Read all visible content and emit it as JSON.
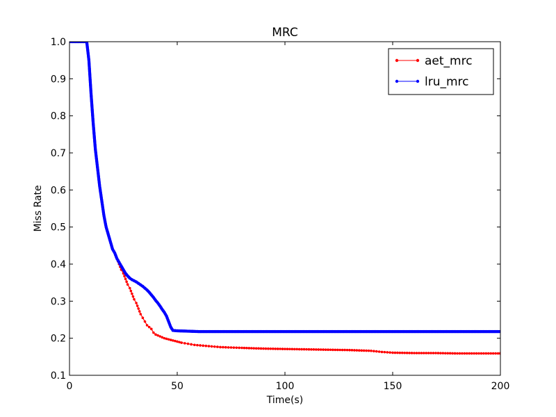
{
  "chart_data": {
    "type": "line",
    "title": "MRC",
    "xlabel": "Time(s)",
    "ylabel": "Miss Rate",
    "xlim": [
      0,
      200
    ],
    "ylim": [
      0.1,
      1.0
    ],
    "xticks": [
      0,
      50,
      100,
      150,
      200
    ],
    "yticks": [
      0.1,
      0.2,
      0.3,
      0.4,
      0.5,
      0.6,
      0.7,
      0.8,
      0.9,
      1.0
    ],
    "xtick_labels": [
      "0",
      "50",
      "100",
      "150",
      "200"
    ],
    "ytick_labels": [
      "0.1",
      "0.2",
      "0.3",
      "0.4",
      "0.5",
      "0.6",
      "0.7",
      "0.8",
      "0.9",
      "1.0"
    ],
    "grid": false,
    "legend_position": "top-right",
    "series": [
      {
        "name": "aet_mrc",
        "color": "#ff0000",
        "x": [
          8,
          9,
          10,
          11,
          12,
          13,
          14,
          15,
          16,
          17,
          18,
          19,
          20,
          21,
          22,
          23,
          24,
          25,
          26,
          27,
          28,
          29,
          30,
          31,
          32,
          33,
          34,
          35,
          36,
          37,
          38,
          39,
          40,
          42,
          44,
          46,
          48,
          50,
          52,
          55,
          58,
          62,
          66,
          70,
          75,
          80,
          90,
          100,
          110,
          120,
          130,
          140,
          145,
          150,
          160,
          170,
          180,
          190,
          200
        ],
        "y": [
          1.0,
          0.95,
          0.86,
          0.78,
          0.71,
          0.66,
          0.61,
          0.57,
          0.53,
          0.5,
          0.48,
          0.46,
          0.44,
          0.43,
          0.415,
          0.4,
          0.385,
          0.375,
          0.36,
          0.345,
          0.335,
          0.32,
          0.305,
          0.295,
          0.28,
          0.265,
          0.255,
          0.245,
          0.235,
          0.23,
          0.225,
          0.215,
          0.21,
          0.205,
          0.2,
          0.197,
          0.194,
          0.191,
          0.188,
          0.185,
          0.182,
          0.18,
          0.178,
          0.176,
          0.175,
          0.174,
          0.172,
          0.171,
          0.17,
          0.169,
          0.168,
          0.166,
          0.163,
          0.161,
          0.16,
          0.16,
          0.159,
          0.159,
          0.159
        ]
      },
      {
        "name": "lru_mrc",
        "color": "#0000ff",
        "x": [
          0,
          5,
          8,
          9,
          10,
          11,
          12,
          13,
          14,
          15,
          16,
          17,
          18,
          19,
          20,
          21,
          22,
          23,
          24,
          25,
          26,
          27,
          28,
          29,
          30,
          31,
          32,
          33,
          34,
          35,
          36,
          37,
          38,
          39,
          40,
          41,
          42,
          43,
          44,
          45,
          46,
          47,
          48,
          50,
          55,
          60,
          70,
          80,
          100,
          120,
          150,
          180,
          200
        ],
        "y": [
          1.0,
          1.0,
          1.0,
          0.95,
          0.86,
          0.78,
          0.71,
          0.66,
          0.61,
          0.57,
          0.53,
          0.5,
          0.48,
          0.46,
          0.44,
          0.43,
          0.415,
          0.405,
          0.395,
          0.385,
          0.375,
          0.368,
          0.362,
          0.358,
          0.355,
          0.352,
          0.348,
          0.344,
          0.34,
          0.335,
          0.33,
          0.324,
          0.317,
          0.31,
          0.302,
          0.295,
          0.287,
          0.278,
          0.27,
          0.26,
          0.245,
          0.23,
          0.221,
          0.22,
          0.219,
          0.218,
          0.218,
          0.218,
          0.218,
          0.218,
          0.218,
          0.218,
          0.218
        ]
      }
    ]
  }
}
